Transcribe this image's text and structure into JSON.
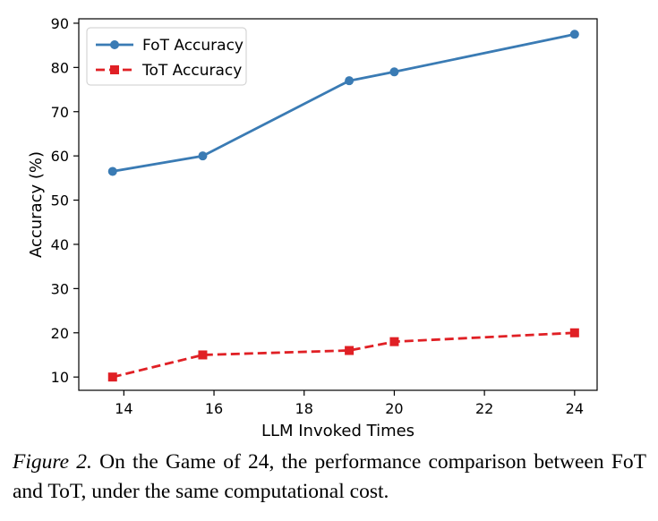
{
  "chart_data": {
    "type": "line",
    "xlabel": "LLM Invoked Times",
    "ylabel": "Accuracy (%)",
    "xlim": [
      13.0,
      24.5
    ],
    "ylim": [
      7,
      91
    ],
    "xticks": [
      14,
      16,
      18,
      20,
      22,
      24
    ],
    "yticks": [
      10,
      20,
      30,
      40,
      50,
      60,
      70,
      80,
      90
    ],
    "grid": false,
    "legend_position": "upper left",
    "series": [
      {
        "name": "FoT Accuracy",
        "color": "#3a7bb4",
        "line_style": "solid",
        "marker": "circle",
        "x": [
          13.75,
          15.75,
          19.0,
          20.0,
          24.0
        ],
        "y": [
          56.5,
          60.0,
          77.0,
          79.0,
          87.5
        ]
      },
      {
        "name": "ToT Accuracy",
        "color": "#e02025",
        "line_style": "dashed",
        "marker": "square",
        "x": [
          13.75,
          15.75,
          19.0,
          20.0,
          24.0
        ],
        "y": [
          10.0,
          15.0,
          16.0,
          18.0,
          20.0
        ]
      }
    ]
  },
  "caption": {
    "label": "Figure 2.",
    "text": " On the Game of 24, the performance comparison between FoT and ToT, under the same computational cost."
  }
}
